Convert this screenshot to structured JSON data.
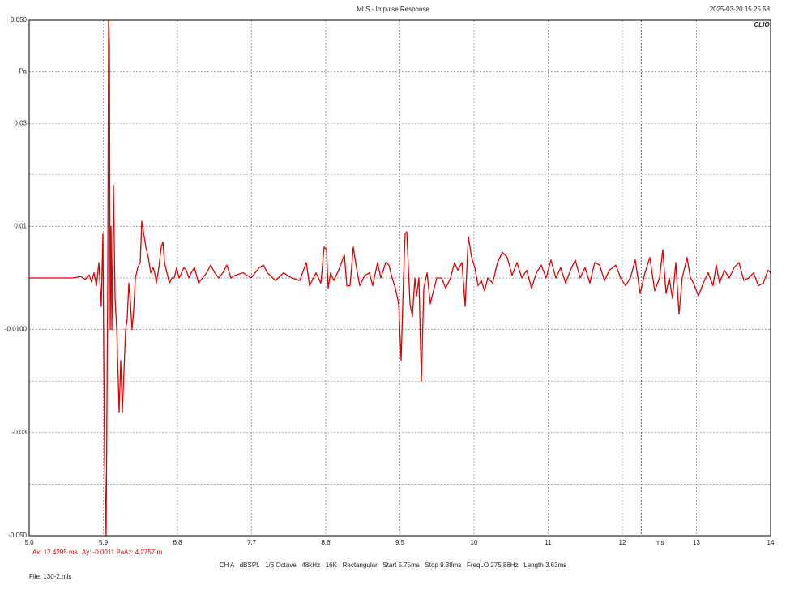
{
  "chart_data": {
    "type": "line",
    "title": "MLS - Impulse Response",
    "timestamp": "2025-03-20 15.25.58",
    "logo": "CLIO",
    "x_unit": "ms",
    "color": "#e00000",
    "grid": true,
    "xlim": [
      5,
      14
    ],
    "ylim": [
      -0.05,
      0.05
    ],
    "xticks": [
      {
        "value": 5,
        "label": "5.0"
      },
      5.9,
      6.8,
      7.7,
      8.6,
      9.5,
      {
        "value": 10.4,
        "label": "10"
      },
      {
        "value": 11.3,
        "label": "11"
      },
      {
        "value": 12.2,
        "label": "12"
      },
      {
        "value": 13.1,
        "label": "13"
      },
      14
    ],
    "yticks": [
      {
        "value": 0.05,
        "label": "0.050"
      },
      {
        "value": 0.04,
        "label": "Pa"
      },
      0.03,
      0.01,
      {
        "value": -0.01,
        "label": "-0.0100"
      },
      -0.03,
      {
        "value": -0.05,
        "label": "-0.050"
      }
    ],
    "minor_yticks": [
      0.02,
      0,
      -0.02,
      -0.04
    ],
    "cursor_x": 12.4295,
    "cursor_readout": [
      "Ax: 12.4295 ms",
      "Ay: -0.0011 Pa",
      "Az: 4.2757 m"
    ],
    "footer": "CH A   dBSPL   1/6 Octave   48kHz   16K   Rectangular   Start 5.75ms   Stop 9.38ms   FreqLO 275.86Hz   Length 3.63ms",
    "file": "File: 130-2.mls",
    "x": [
      5.0,
      5.531,
      5.63,
      5.679,
      5.728,
      5.757,
      5.787,
      5.816,
      5.846,
      5.875,
      5.895,
      5.915,
      5.934,
      5.954,
      5.964,
      5.974,
      5.984,
      5.994,
      6.004,
      6.023,
      6.043,
      6.063,
      6.082,
      6.092,
      6.112,
      6.131,
      6.151,
      6.171,
      6.19,
      6.21,
      6.23,
      6.249,
      6.269,
      6.289,
      6.318,
      6.348,
      6.367,
      6.387,
      6.416,
      6.446,
      6.475,
      6.505,
      6.524,
      6.544,
      6.574,
      6.603,
      6.623,
      6.643,
      6.672,
      6.702,
      6.731,
      6.761,
      6.79,
      6.82,
      6.849,
      6.879,
      6.908,
      6.938,
      6.967,
      7.007,
      7.056,
      7.105,
      7.154,
      7.203,
      7.253,
      7.302,
      7.351,
      7.4,
      7.449,
      7.498,
      7.597,
      7.695,
      7.793,
      7.843,
      7.892,
      7.99,
      8.088,
      8.187,
      8.285,
      8.364,
      8.403,
      8.482,
      8.541,
      8.58,
      8.61,
      8.629,
      8.659,
      8.698,
      8.757,
      8.826,
      8.856,
      8.895,
      8.934,
      8.973,
      9.013,
      9.072,
      9.131,
      9.17,
      9.229,
      9.269,
      9.328,
      9.367,
      9.406,
      9.446,
      9.485,
      9.515,
      9.544,
      9.564,
      9.584,
      9.603,
      9.623,
      9.652,
      9.682,
      9.702,
      9.731,
      9.761,
      9.79,
      9.83,
      9.869,
      9.908,
      9.948,
      10.007,
      10.056,
      10.115,
      10.164,
      10.203,
      10.253,
      10.292,
      10.331,
      10.371,
      10.41,
      10.449,
      10.489,
      10.528,
      10.567,
      10.626,
      10.685,
      10.744,
      10.803,
      10.862,
      10.921,
      10.98,
      11.039,
      11.098,
      11.157,
      11.216,
      11.275,
      11.334,
      11.393,
      11.452,
      11.511,
      11.57,
      11.629,
      11.688,
      11.747,
      11.806,
      11.865,
      11.924,
      11.983,
      12.042,
      12.121,
      12.18,
      12.239,
      12.298,
      12.357,
      12.416,
      12.475,
      12.534,
      12.593,
      12.652,
      12.691,
      12.731,
      12.77,
      12.809,
      12.849,
      12.888,
      12.927,
      12.986,
      13.026,
      13.065,
      13.124,
      13.183,
      13.242,
      13.301,
      13.34,
      13.38,
      13.439,
      13.498,
      13.557,
      13.616,
      13.675,
      13.734,
      13.793,
      13.852,
      13.911,
      13.97,
      14.0
    ],
    "values": [
      0,
      0,
      0.0003,
      -0.0003,
      0.0006,
      -0.0008,
      0.001,
      -0.0015,
      0.003,
      -0.0055,
      0.0085,
      -0.035,
      -0.05,
      0,
      0.05,
      0.045,
      -0.01,
      0.01,
      -0.01,
      0.018,
      -0.004,
      -0.01,
      -0.02,
      -0.026,
      -0.016,
      -0.026,
      -0.018,
      -0.01,
      -0.008,
      -0.001,
      -0.005,
      -0.01,
      -0.006,
      0,
      0.002,
      0.003,
      0.011,
      0.009,
      0.006,
      0.004,
      0.001,
      0.002,
      0.001,
      -0.001,
      0.002,
      0.006,
      0.007,
      0.003,
      0.001,
      -0.001,
      0,
      0,
      0.002,
      0,
      0.001,
      0.002,
      0.0015,
      0,
      0.001,
      0.002,
      -0.001,
      0,
      0.001,
      0.0025,
      0.001,
      0,
      0.001,
      0.0025,
      0,
      0.0005,
      0.001,
      0,
      0.002,
      0.0025,
      0.001,
      -0.0005,
      0.001,
      0,
      -0.0005,
      0.003,
      -0.0015,
      0.001,
      -0.001,
      0.006,
      0.0055,
      -0.002,
      0.001,
      -0.0005,
      0.0015,
      0.0045,
      -0.0015,
      -0.0015,
      0.006,
      0.002,
      -0.0015,
      0.0005,
      0.001,
      -0.0015,
      0.003,
      0,
      0.003,
      0.0025,
      0,
      -0.002,
      -0.005,
      -0.016,
      0,
      0.0085,
      0.009,
      0.002,
      -0.005,
      -0.0075,
      0,
      -0.0035,
      0,
      -0.02,
      -0.002,
      0.001,
      -0.005,
      -0.0025,
      0,
      0,
      -0.002,
      0,
      0.003,
      0.0015,
      0.003,
      -0.0055,
      0.008,
      0.004,
      0.002,
      -0.0015,
      -0.0005,
      -0.0025,
      0,
      -0.001,
      0.003,
      0.005,
      0.004,
      0.0005,
      0.003,
      0,
      0.0015,
      -0.002,
      0.001,
      0.0025,
      0,
      0.0035,
      0,
      0.002,
      -0.001,
      0.0015,
      0.0035,
      0,
      0.002,
      -0.001,
      0.003,
      0.0025,
      -0.0005,
      0.0015,
      0.0025,
      0,
      -0.0015,
      0,
      0.0035,
      -0.003,
      0.001,
      0.004,
      -0.0025,
      0,
      0.0055,
      -0.003,
      0,
      -0.004,
      0.003,
      -0.007,
      0,
      0.004,
      0,
      -0.001,
      -0.0035,
      -0.001,
      0.001,
      -0.0015,
      0.0025,
      -0.001,
      0.0015,
      0,
      0.002,
      0.003,
      -0.0005,
      0,
      0.001,
      -0.0015,
      -0.001,
      0.0015,
      0.001
    ]
  }
}
